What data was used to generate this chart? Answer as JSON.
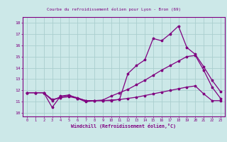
{
  "title": "Courbe du refroidissement éolien pour Lyon - Bron (69)",
  "xlabel": "Windchill (Refroidissement éolien,°C)",
  "xlim": [
    -0.5,
    23.5
  ],
  "ylim": [
    9.7,
    18.5
  ],
  "xticks": [
    0,
    1,
    2,
    3,
    4,
    5,
    6,
    7,
    8,
    9,
    10,
    11,
    12,
    13,
    14,
    15,
    16,
    17,
    18,
    19,
    20,
    21,
    22,
    23
  ],
  "yticks": [
    10,
    11,
    12,
    13,
    14,
    15,
    16,
    17,
    18
  ],
  "background_color": "#cce8e8",
  "grid_color": "#aacece",
  "line_color": "#800080",
  "line1_y": [
    11.8,
    11.8,
    11.8,
    10.5,
    11.5,
    11.6,
    11.3,
    11.0,
    11.1,
    11.1,
    11.1,
    11.2,
    13.5,
    14.2,
    14.7,
    16.6,
    16.4,
    17.0,
    17.7,
    15.8,
    15.2,
    14.1,
    12.9,
    11.9
  ],
  "line2_y": [
    11.8,
    11.8,
    11.8,
    11.1,
    11.45,
    11.55,
    11.35,
    11.1,
    11.1,
    11.15,
    11.5,
    11.8,
    12.1,
    12.5,
    12.9,
    13.35,
    13.8,
    14.2,
    14.6,
    15.0,
    15.1,
    13.8,
    12.3,
    11.3
  ],
  "line3_y": [
    11.8,
    11.8,
    11.8,
    11.2,
    11.35,
    11.45,
    11.3,
    11.1,
    11.1,
    11.1,
    11.15,
    11.2,
    11.3,
    11.4,
    11.55,
    11.7,
    11.85,
    12.0,
    12.15,
    12.3,
    12.4,
    11.7,
    11.1,
    11.1
  ]
}
